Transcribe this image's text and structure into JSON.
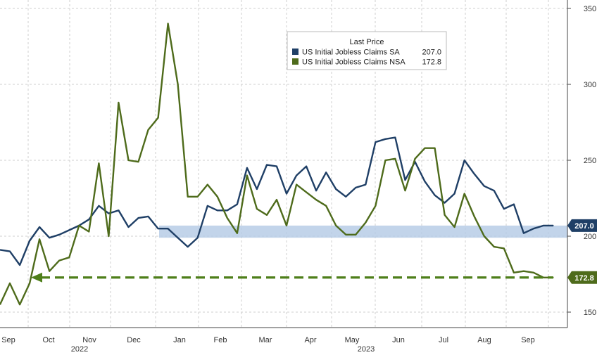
{
  "chart_data": {
    "type": "line",
    "title": "",
    "xlabel": "",
    "ylabel": "",
    "ylim": [
      140,
      355
    ],
    "y_ticks": [
      150,
      200,
      250,
      300,
      350
    ],
    "x_ticks": [
      "Sep",
      "Oct",
      "Nov",
      "Dec",
      "Jan",
      "Feb",
      "Mar",
      "Apr",
      "May",
      "Jun",
      "Jul",
      "Aug",
      "Sep"
    ],
    "year_labels": [
      "2022",
      "2023"
    ],
    "grid": true,
    "legend": {
      "title": "Last Price",
      "placement": "top-center",
      "entries": [
        {
          "label": "US Initial Jobless Claims SA",
          "value": "207.0",
          "color": "#1f3f66"
        },
        {
          "label": "US Initial Jobless Claims NSA",
          "value": "172.8",
          "color": "#4e6b1b"
        }
      ]
    },
    "band": {
      "from": 199,
      "to": 207,
      "color": "#b7cde6"
    },
    "reference_line": {
      "y": 172.8,
      "style": "dashed-arrow",
      "color": "#4e7f1a"
    },
    "series": [
      {
        "name": "US Initial Jobless Claims SA",
        "color": "#1f3f66",
        "last_label": "207.0",
        "x": [
          "2022-08-27",
          "2022-09-03",
          "2022-09-10",
          "2022-09-17",
          "2022-09-24",
          "2022-10-01",
          "2022-10-08",
          "2022-10-15",
          "2022-10-22",
          "2022-10-29",
          "2022-11-05",
          "2022-11-12",
          "2022-11-19",
          "2022-11-26",
          "2022-12-03",
          "2022-12-10",
          "2022-12-17",
          "2022-12-24",
          "2022-12-31",
          "2023-01-07",
          "2023-01-14",
          "2023-01-21",
          "2023-01-28",
          "2023-02-04",
          "2023-02-11",
          "2023-02-18",
          "2023-02-25",
          "2023-03-04",
          "2023-03-11",
          "2023-03-18",
          "2023-03-25",
          "2023-04-01",
          "2023-04-08",
          "2023-04-15",
          "2023-04-22",
          "2023-04-29",
          "2023-05-06",
          "2023-05-13",
          "2023-05-20",
          "2023-05-27",
          "2023-06-03",
          "2023-06-10",
          "2023-06-17",
          "2023-06-24",
          "2023-07-01",
          "2023-07-08",
          "2023-07-15",
          "2023-07-22",
          "2023-07-29",
          "2023-08-05",
          "2023-08-12",
          "2023-08-19",
          "2023-08-26",
          "2023-09-02",
          "2023-09-09",
          "2023-09-16",
          "2023-09-23"
        ],
        "values": [
          191,
          190,
          181,
          197,
          206,
          199,
          201,
          204,
          207,
          211,
          220,
          215,
          217,
          206,
          212,
          213,
          205,
          205,
          199,
          193,
          199,
          220,
          217,
          217,
          221,
          245,
          231,
          247,
          246,
          228,
          240,
          246,
          230,
          242,
          231,
          226,
          232,
          234,
          262,
          264,
          265,
          237,
          249,
          236,
          227,
          222,
          228,
          250,
          241,
          233,
          230,
          218,
          221,
          202,
          205,
          207,
          207
        ]
      },
      {
        "name": "US Initial Jobless Claims NSA",
        "color": "#4e6b1b",
        "last_label": "172.8",
        "x": [
          "2022-08-27",
          "2022-09-03",
          "2022-09-10",
          "2022-09-17",
          "2022-09-24",
          "2022-10-01",
          "2022-10-08",
          "2022-10-15",
          "2022-10-22",
          "2022-10-29",
          "2022-11-05",
          "2022-11-12",
          "2022-11-19",
          "2022-11-26",
          "2022-12-03",
          "2022-12-10",
          "2022-12-17",
          "2022-12-24",
          "2022-12-31",
          "2023-01-07",
          "2023-01-14",
          "2023-01-21",
          "2023-01-28",
          "2023-02-04",
          "2023-02-11",
          "2023-02-18",
          "2023-02-25",
          "2023-03-04",
          "2023-03-11",
          "2023-03-18",
          "2023-03-25",
          "2023-04-01",
          "2023-04-08",
          "2023-04-15",
          "2023-04-22",
          "2023-04-29",
          "2023-05-06",
          "2023-05-13",
          "2023-05-20",
          "2023-05-27",
          "2023-06-03",
          "2023-06-10",
          "2023-06-17",
          "2023-06-24",
          "2023-07-01",
          "2023-07-08",
          "2023-07-15",
          "2023-07-22",
          "2023-07-29",
          "2023-08-05",
          "2023-08-12",
          "2023-08-19",
          "2023-08-26",
          "2023-09-02",
          "2023-09-09",
          "2023-09-16",
          "2023-09-23"
        ],
        "values": [
          155,
          169,
          155,
          169,
          198,
          177,
          184,
          186,
          207,
          203,
          248,
          200,
          288,
          250,
          249,
          270,
          278,
          340,
          300,
          226,
          226,
          234,
          226,
          212,
          202,
          240,
          218,
          214,
          224,
          207,
          234,
          229,
          224,
          220,
          207,
          201,
          201,
          209,
          220,
          250,
          251,
          230,
          251,
          258,
          258,
          214,
          206,
          228,
          213,
          200,
          193,
          192,
          176,
          177,
          176,
          172.8,
          172.8
        ]
      }
    ]
  }
}
